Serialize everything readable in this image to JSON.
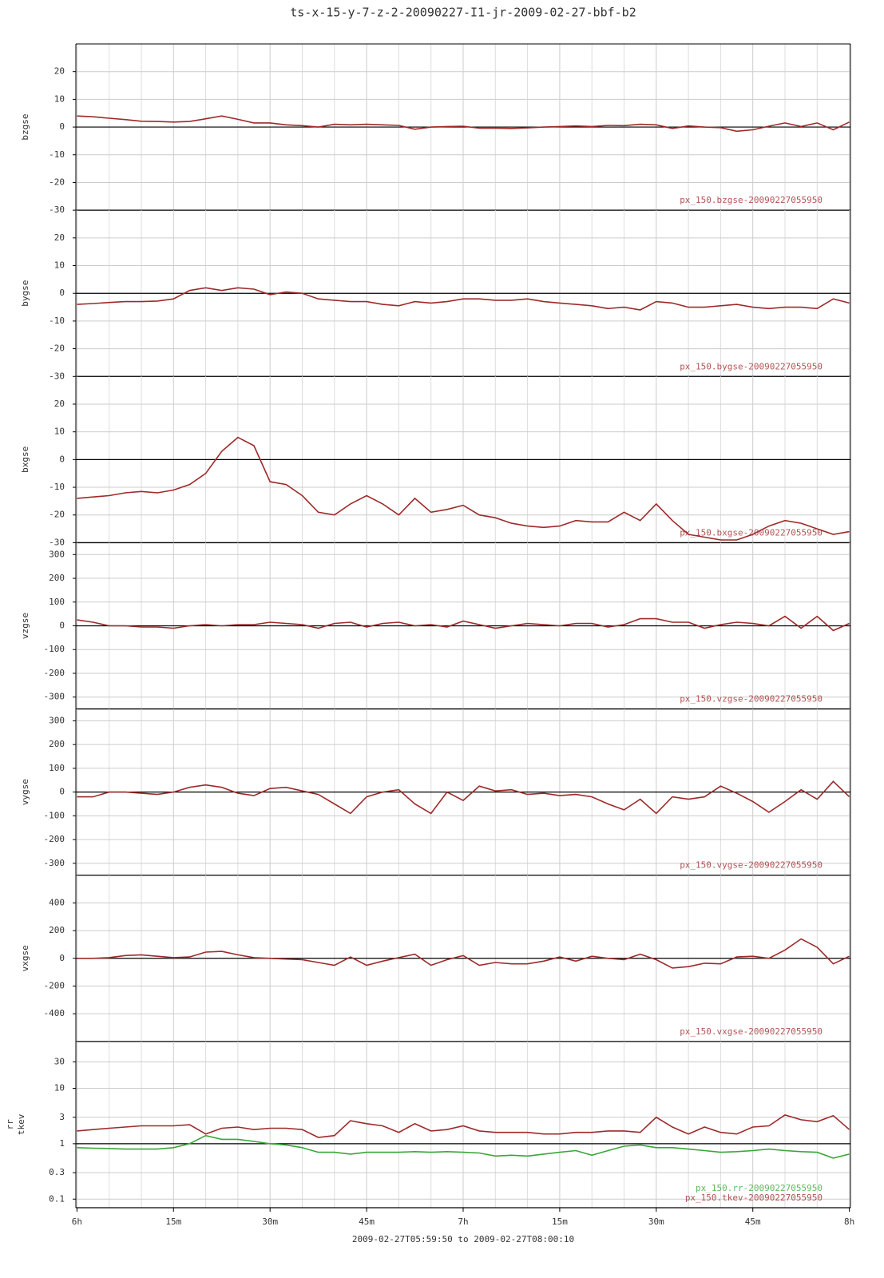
{
  "chart_data": [
    {
      "type": "line",
      "title": "ts-x-15-y-7-z-2-20090227-I1-jr-2009-02-27-bbf-b2",
      "ylabel": "bzgse",
      "x": [
        0,
        2.5,
        5,
        7.5,
        10,
        12.5,
        15,
        17.5,
        20,
        22.5,
        25,
        27.5,
        30,
        32.5,
        35,
        37.5,
        40,
        42.5,
        45,
        47.5,
        50,
        52.5,
        55,
        57.5,
        60,
        62.5,
        65,
        67.5,
        70,
        72.5,
        75,
        77.5,
        80,
        82.5,
        85,
        87.5,
        90,
        92.5,
        95,
        97.5,
        100,
        102.5,
        105,
        107.5,
        110,
        112.5,
        115,
        117.5,
        120
      ],
      "xlim": [
        -0.17,
        120.17
      ],
      "ylim": [
        -30,
        30
      ],
      "yticks": [
        20,
        10,
        0,
        -10,
        -20,
        -30
      ],
      "series": [
        {
          "name": "px_150.bzgse-20090227055950",
          "color": "#9e2a2a",
          "values": [
            4,
            3.7,
            3.2,
            2.7,
            2.1,
            2,
            1.8,
            2,
            3,
            4,
            2.8,
            1.5,
            1.5,
            0.8,
            0.5,
            0,
            1,
            0.8,
            1,
            0.8,
            0.6,
            -0.8,
            0,
            0.2,
            0.3,
            -0.4,
            -0.4,
            -0.5,
            -0.3,
            0,
            0.2,
            0.4,
            0.2,
            0.6,
            0.5,
            1,
            0.8,
            -0.5,
            0.4,
            0,
            -0.2,
            -1.5,
            -1,
            0.3,
            1.5,
            0.2,
            1.5,
            -1,
            1.8
          ]
        }
      ]
    },
    {
      "type": "line",
      "ylabel": "bygse",
      "x": [
        0,
        2.5,
        5,
        7.5,
        10,
        12.5,
        15,
        17.5,
        20,
        22.5,
        25,
        27.5,
        30,
        32.5,
        35,
        37.5,
        40,
        42.5,
        45,
        47.5,
        50,
        52.5,
        55,
        57.5,
        60,
        62.5,
        65,
        67.5,
        70,
        72.5,
        75,
        77.5,
        80,
        82.5,
        85,
        87.5,
        90,
        92.5,
        95,
        97.5,
        100,
        102.5,
        105,
        107.5,
        110,
        112.5,
        115,
        117.5,
        120
      ],
      "xlim": [
        -0.17,
        120.17
      ],
      "ylim": [
        -30,
        30
      ],
      "yticks": [
        20,
        10,
        0,
        -10,
        -20,
        -30
      ],
      "series": [
        {
          "name": "px_150.bygse-20090227055950",
          "color": "#9e2a2a",
          "values": [
            -4,
            -3.7,
            -3.3,
            -3,
            -3,
            -2.8,
            -2,
            1,
            2,
            1,
            2,
            1.5,
            -0.5,
            0.5,
            0,
            -2,
            -2.5,
            -3,
            -3,
            -4,
            -4.5,
            -3,
            -3.5,
            -3,
            -2,
            -2,
            -2.5,
            -2.5,
            -2,
            -3,
            -3.5,
            -4,
            -4.5,
            -5.5,
            -5,
            -6,
            -3,
            -3.5,
            -5,
            -5,
            -4.5,
            -4,
            -5,
            -5.5,
            -5,
            -5,
            -5.5,
            -2,
            -3.5
          ]
        }
      ]
    },
    {
      "type": "line",
      "ylabel": "bxgse",
      "x": [
        0,
        2.5,
        5,
        7.5,
        10,
        12.5,
        15,
        17.5,
        20,
        22.5,
        25,
        27.5,
        30,
        32.5,
        35,
        37.5,
        40,
        42.5,
        45,
        47.5,
        50,
        52.5,
        55,
        57.5,
        60,
        62.5,
        65,
        67.5,
        70,
        72.5,
        75,
        77.5,
        80,
        82.5,
        85,
        87.5,
        90,
        92.5,
        95,
        97.5,
        100,
        102.5,
        105,
        107.5,
        110,
        112.5,
        115,
        117.5,
        120
      ],
      "xlim": [
        -0.17,
        120.17
      ],
      "ylim": [
        -30,
        30
      ],
      "yticks": [
        20,
        10,
        0,
        -10,
        -20,
        -30
      ],
      "series": [
        {
          "name": "px_150.bxgse-20090227055950",
          "color": "#9e2a2a",
          "values": [
            -14,
            -13.5,
            -13,
            -12,
            -11.5,
            -12,
            -11,
            -9,
            -5,
            3,
            8,
            5,
            -8,
            -9,
            -13,
            -19,
            -20,
            -16,
            -13,
            -16,
            -20,
            -14,
            -19,
            -18,
            -16.5,
            -20,
            -21,
            -23,
            -24,
            -24.5,
            -24,
            -22,
            -22.5,
            -22.5,
            -19,
            -22,
            -16,
            -22,
            -27,
            -28,
            -29,
            -29,
            -27,
            -24,
            -22,
            -23,
            -25,
            -27,
            -26
          ]
        }
      ]
    },
    {
      "type": "line",
      "ylabel": "vzgse",
      "x": [
        0,
        2.5,
        5,
        7.5,
        10,
        12.5,
        15,
        17.5,
        20,
        22.5,
        25,
        27.5,
        30,
        32.5,
        35,
        37.5,
        40,
        42.5,
        45,
        47.5,
        50,
        52.5,
        55,
        57.5,
        60,
        62.5,
        65,
        67.5,
        70,
        72.5,
        75,
        77.5,
        80,
        82.5,
        85,
        87.5,
        90,
        92.5,
        95,
        97.5,
        100,
        102.5,
        105,
        107.5,
        110,
        112.5,
        115,
        117.5,
        120
      ],
      "xlim": [
        -0.17,
        120.17
      ],
      "ylim": [
        -350,
        350
      ],
      "yticks": [
        300,
        200,
        100,
        0,
        -100,
        -200,
        -300
      ],
      "series": [
        {
          "name": "px_150.vzgse-20090227055950",
          "color": "#9e2a2a",
          "values": [
            25,
            15,
            0,
            0,
            -5,
            -5,
            -10,
            0,
            5,
            0,
            5,
            5,
            15,
            10,
            5,
            -10,
            10,
            15,
            -5,
            10,
            15,
            0,
            5,
            -5,
            20,
            5,
            -10,
            0,
            10,
            5,
            0,
            10,
            10,
            -5,
            5,
            30,
            30,
            15,
            15,
            -10,
            5,
            15,
            10,
            0,
            40,
            -10,
            40,
            -20,
            10
          ]
        }
      ]
    },
    {
      "type": "line",
      "ylabel": "vygse",
      "x": [
        0,
        2.5,
        5,
        7.5,
        10,
        12.5,
        15,
        17.5,
        20,
        22.5,
        25,
        27.5,
        30,
        32.5,
        35,
        37.5,
        40,
        42.5,
        45,
        47.5,
        50,
        52.5,
        55,
        57.5,
        60,
        62.5,
        65,
        67.5,
        70,
        72.5,
        75,
        77.5,
        80,
        82.5,
        85,
        87.5,
        90,
        92.5,
        95,
        97.5,
        100,
        102.5,
        105,
        107.5,
        110,
        112.5,
        115,
        117.5,
        120
      ],
      "xlim": [
        -0.17,
        120.17
      ],
      "ylim": [
        -350,
        350
      ],
      "yticks": [
        300,
        200,
        100,
        0,
        -100,
        -200,
        -300
      ],
      "series": [
        {
          "name": "px_150.vygse-20090227055950",
          "color": "#9e2a2a",
          "values": [
            -20,
            -20,
            0,
            0,
            -5,
            -10,
            0,
            20,
            30,
            20,
            -5,
            -15,
            15,
            20,
            5,
            -10,
            -50,
            -90,
            -20,
            0,
            10,
            -50,
            -90,
            0,
            -35,
            25,
            5,
            10,
            -10,
            -5,
            -15,
            -10,
            -20,
            -50,
            -75,
            -30,
            -90,
            -20,
            -30,
            -20,
            25,
            -5,
            -40,
            -85,
            -40,
            10,
            -30,
            45,
            -20
          ]
        }
      ]
    },
    {
      "type": "line",
      "ylabel": "vxgse",
      "x": [
        0,
        2.5,
        5,
        7.5,
        10,
        12.5,
        15,
        17.5,
        20,
        22.5,
        25,
        27.5,
        30,
        32.5,
        35,
        37.5,
        40,
        42.5,
        45,
        47.5,
        50,
        52.5,
        55,
        57.5,
        60,
        62.5,
        65,
        67.5,
        70,
        72.5,
        75,
        77.5,
        80,
        82.5,
        85,
        87.5,
        90,
        92.5,
        95,
        97.5,
        100,
        102.5,
        105,
        107.5,
        110,
        112.5,
        115,
        117.5,
        120
      ],
      "xlim": [
        -0.17,
        120.17
      ],
      "ylim": [
        -600,
        600
      ],
      "yticks": [
        400,
        200,
        0,
        -200,
        -400
      ],
      "series": [
        {
          "name": "px_150.vxgse-20090227055950",
          "color": "#9e2a2a",
          "values": [
            0,
            0,
            5,
            20,
            25,
            15,
            5,
            10,
            45,
            50,
            25,
            5,
            0,
            -5,
            -10,
            -30,
            -50,
            10,
            -50,
            -20,
            5,
            30,
            -50,
            -10,
            20,
            -50,
            -30,
            -40,
            -40,
            -20,
            10,
            -20,
            15,
            0,
            -10,
            30,
            -10,
            -70,
            -60,
            -35,
            -40,
            10,
            15,
            0,
            60,
            140,
            80,
            -40,
            15
          ]
        }
      ]
    },
    {
      "type": "line",
      "ylabel": [
        "rr",
        "tkev"
      ],
      "log": true,
      "x": [
        0,
        2.5,
        5,
        7.5,
        10,
        12.5,
        15,
        17.5,
        20,
        22.5,
        25,
        27.5,
        30,
        32.5,
        35,
        37.5,
        40,
        42.5,
        45,
        47.5,
        50,
        52.5,
        55,
        57.5,
        60,
        62.5,
        65,
        67.5,
        70,
        72.5,
        75,
        77.5,
        80,
        82.5,
        85,
        87.5,
        90,
        92.5,
        95,
        97.5,
        100,
        102.5,
        105,
        107.5,
        110,
        112.5,
        115,
        117.5,
        120
      ],
      "xlim": [
        -0.17,
        120.17
      ],
      "ylim": [
        0.07,
        70
      ],
      "yticks": [
        30,
        10,
        3,
        1,
        0.3,
        0.1
      ],
      "xticks": [
        {
          "value": 0,
          "label": "6h"
        },
        {
          "value": 15,
          "label": "15m"
        },
        {
          "value": 30,
          "label": "30m"
        },
        {
          "value": 45,
          "label": "45m"
        },
        {
          "value": 60,
          "label": "7h"
        },
        {
          "value": 75,
          "label": "15m"
        },
        {
          "value": 90,
          "label": "30m"
        },
        {
          "value": 105,
          "label": "45m"
        },
        {
          "value": 120,
          "label": "8h"
        }
      ],
      "xlabel": "2009-02-27T05:59:50 to 2009-02-27T08:00:10",
      "series": [
        {
          "name": "px_150.rr-20090227055950",
          "color": "#3aa63a",
          "values": [
            0.85,
            0.83,
            0.82,
            0.8,
            0.8,
            0.8,
            0.85,
            1,
            1.4,
            1.2,
            1.2,
            1.1,
            1,
            0.95,
            0.85,
            0.7,
            0.7,
            0.65,
            0.7,
            0.7,
            0.7,
            0.72,
            0.7,
            0.72,
            0.7,
            0.68,
            0.6,
            0.62,
            0.6,
            0.65,
            0.7,
            0.75,
            0.62,
            0.75,
            0.9,
            0.95,
            0.85,
            0.85,
            0.8,
            0.75,
            0.7,
            0.72,
            0.75,
            0.8,
            0.75,
            0.72,
            0.7,
            0.55,
            0.65
          ]
        },
        {
          "name": "px_150.tkev-20090227055950",
          "color": "#9e2a2a",
          "values": [
            1.7,
            1.8,
            1.9,
            2,
            2.1,
            2.1,
            2.1,
            2.2,
            1.5,
            1.9,
            2,
            1.8,
            1.9,
            1.9,
            1.8,
            1.3,
            1.4,
            2.6,
            2.3,
            2.1,
            1.6,
            2.3,
            1.7,
            1.8,
            2.1,
            1.7,
            1.6,
            1.6,
            1.6,
            1.5,
            1.5,
            1.6,
            1.6,
            1.7,
            1.7,
            1.6,
            3,
            2,
            1.5,
            2,
            1.6,
            1.5,
            2,
            2.1,
            3.3,
            2.7,
            2.5,
            3.2,
            1.8
          ]
        }
      ]
    }
  ]
}
